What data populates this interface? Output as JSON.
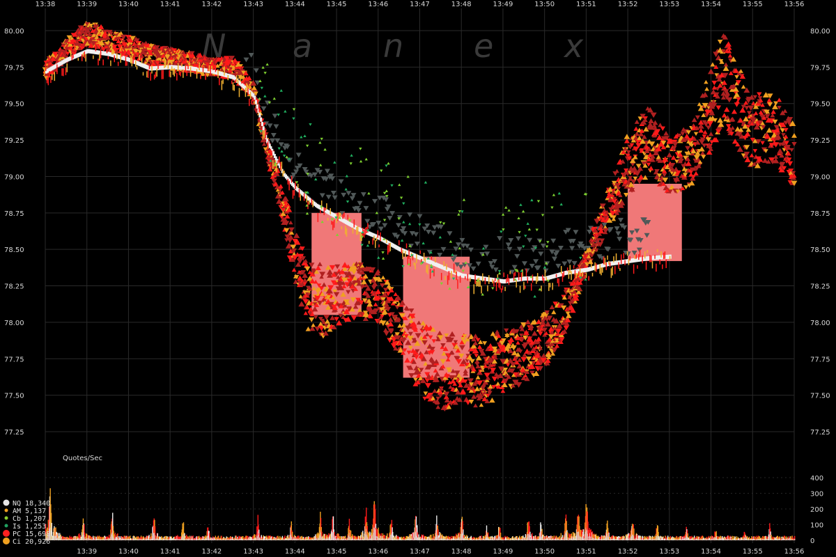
{
  "chart_data": {
    "type": "scatter",
    "watermark_letters": [
      "N",
      "a",
      "n",
      "e",
      "x"
    ],
    "time_ticks_top": [
      "13:38",
      "13:39",
      "13:40",
      "13:41",
      "13:42",
      "13:43",
      "13:44",
      "13:45",
      "13:46",
      "13:47",
      "13:48",
      "13:49",
      "13:50",
      "13:51",
      "13:52",
      "13:53",
      "13:54",
      "13:55",
      "13:56"
    ],
    "time_ticks_bottom": [
      "13:39",
      "13:40",
      "13:41",
      "13:42",
      "13:43",
      "13:44",
      "13:45",
      "13:46",
      "13:47",
      "13:48",
      "13:49",
      "13:50",
      "13:51",
      "13:52",
      "13:53",
      "13:54",
      "13:55",
      "13:56"
    ],
    "x_range": [
      "13:38",
      "13:56"
    ],
    "price_ticks": [
      "80.00",
      "79.75",
      "79.50",
      "79.25",
      "79.00",
      "78.75",
      "78.50",
      "78.25",
      "78.00",
      "77.75",
      "77.50",
      "77.25"
    ],
    "ylim": [
      77.1,
      80.05
    ],
    "grid": true,
    "bid_path": [
      [
        "13:38",
        79.72
      ],
      [
        "13:38.5",
        79.8
      ],
      [
        "13:39",
        79.86
      ],
      [
        "13:39.5",
        79.84
      ],
      [
        "13:40",
        79.8
      ],
      [
        "13:40.5",
        79.74
      ],
      [
        "13:41",
        79.75
      ],
      [
        "13:41.5",
        79.74
      ],
      [
        "13:42",
        79.72
      ],
      [
        "13:42.5",
        79.68
      ],
      [
        "13:43",
        79.55
      ],
      [
        "13:43.3",
        79.25
      ],
      [
        "13:43.7",
        79.02
      ],
      [
        "13:44",
        78.92
      ],
      [
        "13:44.5",
        78.8
      ],
      [
        "13:45",
        78.72
      ],
      [
        "13:45.5",
        78.64
      ],
      [
        "13:46",
        78.58
      ],
      [
        "13:46.5",
        78.5
      ],
      [
        "13:47",
        78.44
      ],
      [
        "13:47.5",
        78.38
      ],
      [
        "13:48",
        78.32
      ],
      [
        "13:48.5",
        78.3
      ],
      [
        "13:49",
        78.28
      ],
      [
        "13:49.5",
        78.3
      ],
      [
        "13:50",
        78.3
      ],
      [
        "13:50.5",
        78.34
      ],
      [
        "13:51",
        78.36
      ],
      [
        "13:51.5",
        78.4
      ],
      [
        "13:52",
        78.42
      ],
      [
        "13:52.5",
        78.44
      ],
      [
        "13:53",
        78.45
      ]
    ],
    "ask_path": [
      [
        "13:38",
        79.7
      ],
      [
        "13:38.5",
        79.84
      ],
      [
        "13:39",
        79.95
      ],
      [
        "13:39.5",
        79.9
      ],
      [
        "13:40",
        79.86
      ],
      [
        "13:40.5",
        79.8
      ],
      [
        "13:41",
        79.78
      ],
      [
        "13:41.5",
        79.76
      ],
      [
        "13:42",
        79.72
      ],
      [
        "13:42.5",
        79.72
      ],
      [
        "13:43",
        79.56
      ],
      [
        "13:43.3",
        79.2
      ],
      [
        "13:43.7",
        78.75
      ],
      [
        "13:44",
        78.4
      ],
      [
        "13:44.3",
        78.1
      ],
      [
        "13:44.7",
        78.05
      ],
      [
        "13:45",
        78.1
      ],
      [
        "13:45.5",
        78.15
      ],
      [
        "13:46",
        78.1
      ],
      [
        "13:46.5",
        77.9
      ],
      [
        "13:47",
        77.65
      ],
      [
        "13:47.5",
        77.55
      ],
      [
        "13:48",
        77.6
      ],
      [
        "13:48.5",
        77.55
      ],
      [
        "13:49",
        77.65
      ],
      [
        "13:49.5",
        77.7
      ],
      [
        "13:50",
        77.8
      ],
      [
        "13:50.5",
        78.0
      ],
      [
        "13:51",
        78.4
      ],
      [
        "13:51.5",
        78.7
      ],
      [
        "13:52",
        79.0
      ],
      [
        "13:52.5",
        79.15
      ],
      [
        "13:53",
        79.0
      ],
      [
        "13:53.5",
        79.05
      ],
      [
        "13:54",
        79.35
      ],
      [
        "13:54.3",
        79.55
      ],
      [
        "13:54.7",
        79.35
      ],
      [
        "13:55",
        79.2
      ],
      [
        "13:55.5",
        79.25
      ],
      [
        "13:56",
        79.05
      ]
    ],
    "crossed_zones": [
      {
        "from": "13:44.4",
        "to": "13:45.6",
        "low": 78.05,
        "high": 78.75
      },
      {
        "from": "13:46.6",
        "to": "13:48.2",
        "low": 77.62,
        "high": 78.45
      },
      {
        "from": "13:52",
        "to": "13:53.3",
        "low": 78.42,
        "high": 78.95
      }
    ],
    "quotes_panel": {
      "title": "Quotes/Sec",
      "y_ticks": [
        "400",
        "300",
        "200",
        "100",
        "0"
      ],
      "ylim": [
        0,
        430
      ],
      "peaks": [
        [
          "13:38.1",
          420
        ],
        [
          "13:38.9",
          190
        ],
        [
          "13:39.6",
          210
        ],
        [
          "13:40.6",
          180
        ],
        [
          "13:41.3",
          160
        ],
        [
          "13:41.9",
          120
        ],
        [
          "13:43.1",
          170
        ],
        [
          "13:43.9",
          130
        ],
        [
          "13:44.6",
          190
        ],
        [
          "13:44.9",
          200
        ],
        [
          "13:45.3",
          150
        ],
        [
          "13:45.7",
          230
        ],
        [
          "13:45.9",
          320
        ],
        [
          "13:46.3",
          180
        ],
        [
          "13:46.9",
          210
        ],
        [
          "13:47.4",
          190
        ],
        [
          "13:48.0",
          200
        ],
        [
          "13:48.6",
          110
        ],
        [
          "13:48.9",
          120
        ],
        [
          "13:49.6",
          180
        ],
        [
          "13:49.9",
          150
        ],
        [
          "13:50.5",
          200
        ],
        [
          "13:50.8",
          290
        ],
        [
          "13:51.0",
          350
        ],
        [
          "13:51.5",
          160
        ],
        [
          "13:52.1",
          190
        ],
        [
          "13:52.7",
          130
        ],
        [
          "13:53.4",
          100
        ],
        [
          "13:54.1",
          90
        ],
        [
          "13:54.8",
          70
        ],
        [
          "13:55.4",
          110
        ]
      ]
    },
    "legend": [
      {
        "label": "NQ 18,340",
        "color": "#e6e6e6"
      },
      {
        "label": "AM  5,137",
        "color": "#f0a020"
      },
      {
        "label": "Cb  1,207",
        "color": "#8ccf30"
      },
      {
        "label": "Is  1,253",
        "color": "#20a060"
      },
      {
        "label": "PC 15,698",
        "color": "#ff2020"
      },
      {
        "label": "Ci 20,926",
        "color": "#f0a020"
      }
    ],
    "colors": {
      "nq": "#f0f0f0",
      "am": "#f0b030",
      "cb": "#7ed030",
      "is": "#20b060",
      "pc": "#ff1a1a",
      "ci": "#f0a020",
      "dark_red": "#b02020",
      "gray": "#505858",
      "crossed": "#f07878",
      "grid": "#2a2a2a"
    }
  }
}
